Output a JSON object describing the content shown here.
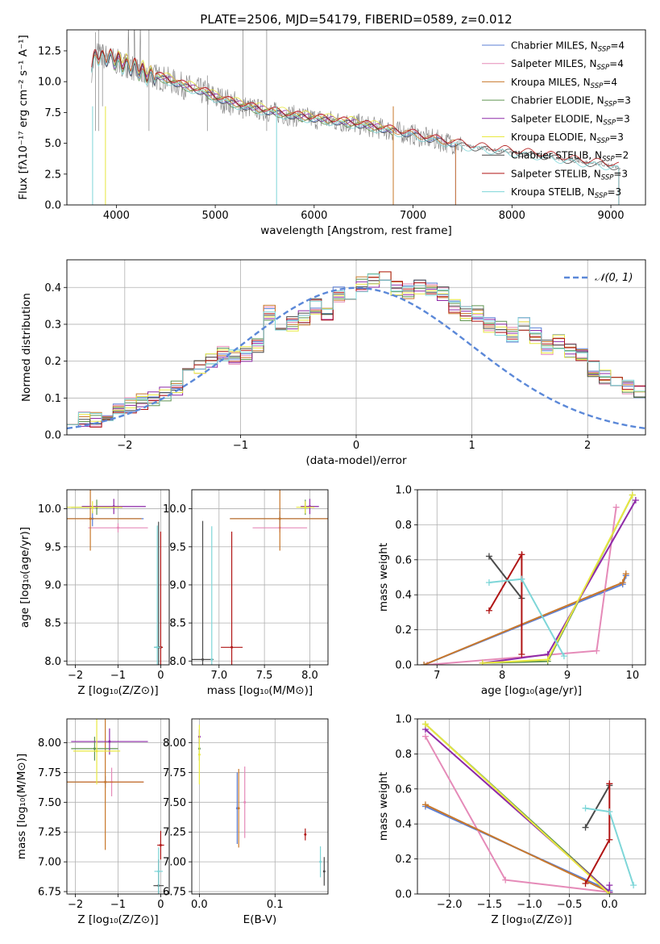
{
  "colors": {
    "Chabrier MILES": "#5b7fd6",
    "Salpeter MILES": "#e58ab8",
    "Kroupa MILES": "#c8782c",
    "Chabrier ELODIE": "#5f9450",
    "Salpeter ELODIE": "#8e2aa8",
    "Kroupa ELODIE": "#e8e840",
    "Chabrier STELIB": "#4a4a4a",
    "Salpeter STELIB": "#b01515",
    "Kroupa STELIB": "#7ed6d8",
    "data": "#808080",
    "gaussian": "#5b88d8",
    "grid": "#b0b0b0"
  },
  "chart_data": [
    {
      "id": "spectrum",
      "type": "line",
      "title": "PLATE=2506, MJD=54179, FIBERID=0589, z=0.012",
      "xlabel": "wavelength [Angstrom, rest frame]",
      "ylabel": "Flux [fλ10⁻¹⁷ erg cm⁻² s⁻¹ A⁻¹]",
      "xlim": [
        3500,
        9350
      ],
      "ylim": [
        0,
        14.2
      ],
      "xticks": [
        4000,
        5000,
        6000,
        7000,
        8000,
        9000
      ],
      "yticks": [
        0.0,
        2.5,
        5.0,
        7.5,
        10.0,
        12.5
      ],
      "grid": false,
      "legend_position": "top-right",
      "legend": [
        {
          "base": "Chabrier MILES, N",
          "sub": "SSP",
          "tail": "=4"
        },
        {
          "base": "Salpeter MILES, N",
          "sub": "SSP",
          "tail": "=4"
        },
        {
          "base": "Kroupa MILES, N",
          "sub": "SSP",
          "tail": "=4"
        },
        {
          "base": "Chabrier ELODIE, N",
          "sub": "SSP",
          "tail": "=3"
        },
        {
          "base": "Salpeter ELODIE, N",
          "sub": "SSP",
          "tail": "=3"
        },
        {
          "base": "Kroupa ELODIE, N",
          "sub": "SSP",
          "tail": "=3"
        },
        {
          "base": "Chabrier STELIB, N",
          "sub": "SSP",
          "tail": "=2"
        },
        {
          "base": "Salpeter STELIB, N",
          "sub": "SSP",
          "tail": "=3"
        },
        {
          "base": "Kroupa STELIB, N",
          "sub": "SSP",
          "tail": "=3"
        }
      ],
      "data_continuum": {
        "x": [
          3750,
          3800,
          3900,
          4000,
          4100,
          4200,
          4300,
          4500,
          4700,
          4900,
          5000,
          5200,
          5400,
          5600,
          5800,
          6000,
          6200,
          6400,
          6600,
          6800,
          7000,
          7200,
          7400,
          7600,
          7800,
          8000,
          8200,
          8400,
          8600,
          8800,
          9000,
          9100
        ],
        "y": [
          11.0,
          12.2,
          12.0,
          11.6,
          11.4,
          11.0,
          10.6,
          10.2,
          9.6,
          9.1,
          8.7,
          8.2,
          7.8,
          7.5,
          7.2,
          7.0,
          6.8,
          6.6,
          6.3,
          6.0,
          5.7,
          5.3,
          5.0,
          4.7,
          4.5,
          4.3,
          4.1,
          3.9,
          3.6,
          3.4,
          3.2,
          3.0
        ]
      },
      "model_ranges": {
        "MILES": [
          3750,
          7430
        ],
        "ELODIE": [
          3900,
          6800
        ],
        "STELIB": [
          3750,
          9080
        ]
      }
    },
    {
      "id": "residuals",
      "type": "line",
      "title": "",
      "xlabel": "(data-model)/error",
      "ylabel": "Normed distribution",
      "xlim": [
        -2.5,
        2.5
      ],
      "ylim": [
        0,
        0.475
      ],
      "xticks": [
        -2,
        -1,
        0,
        1,
        2
      ],
      "yticks": [
        0.0,
        0.1,
        0.2,
        0.3,
        0.4
      ],
      "grid": true,
      "legend_position": "top-right",
      "legend": [
        {
          "label": "𝒩(0, 1)"
        }
      ],
      "bin_width": 0.1,
      "histogram_mean": [
        0.05,
        0.04,
        0.04,
        0.06,
        0.07,
        0.08,
        0.09,
        0.1,
        0.11,
        0.13,
        0.17,
        0.18,
        0.2,
        0.22,
        0.21,
        0.22,
        0.24,
        0.33,
        0.28,
        0.3,
        0.32,
        0.35,
        0.33,
        0.38,
        0.37,
        0.41,
        0.42,
        0.44,
        0.4,
        0.39,
        0.4,
        0.39,
        0.38,
        0.35,
        0.33,
        0.33,
        0.3,
        0.29,
        0.27,
        0.3,
        0.27,
        0.24,
        0.25,
        0.23,
        0.22,
        0.18,
        0.16,
        0.14,
        0.13,
        0.12,
        0.12,
        0.11,
        0.1,
        0.09,
        0.07,
        0.08,
        0.06,
        0.06,
        0.05,
        0.04
      ],
      "gaussian": {
        "mean": 0,
        "sigma": 1
      }
    },
    {
      "id": "age_vs_Z",
      "type": "scatter",
      "xlabel": "Z [log₁₀(Z/Z⊙)]",
      "ylabel": "age  [log₁₀(age/yr)]",
      "xlim": [
        -2.2,
        0.2
      ],
      "ylim": [
        7.95,
        10.25
      ],
      "xticks": [
        -2,
        -1,
        0
      ],
      "yticks": [
        8.0,
        8.5,
        9.0,
        9.5,
        10.0
      ],
      "grid": true,
      "points": [
        {
          "model": "Chabrier MILES",
          "x": -1.6,
          "y": 9.87,
          "xerr": 1.2,
          "yerr": 0.1
        },
        {
          "model": "Salpeter MILES",
          "x": -1.0,
          "y": 9.75,
          "xerr": 0.7,
          "yerr": 0.06
        },
        {
          "model": "Kroupa MILES",
          "x": -1.65,
          "y": 9.87,
          "xerr": 1.2,
          "yerr": 0.42
        },
        {
          "model": "Chabrier ELODIE",
          "x": -1.5,
          "y": 10.02,
          "xerr": 0.6,
          "yerr": 0.1
        },
        {
          "model": "Salpeter ELODIE",
          "x": -1.1,
          "y": 10.03,
          "xerr": 0.75,
          "yerr": 0.1
        },
        {
          "model": "Kroupa ELODIE",
          "x": -1.6,
          "y": 10.02,
          "xerr": 0.7,
          "yerr": 0.08
        },
        {
          "model": "Chabrier STELIB",
          "x": -0.05,
          "y": 8.18,
          "xerr": 0.1,
          "yerr": 1.65
        },
        {
          "model": "Salpeter STELIB",
          "x": 0.0,
          "y": 8.18,
          "xerr": 0.05,
          "yerr": 1.52
        },
        {
          "model": "Kroupa STELIB",
          "x": -0.08,
          "y": 8.18,
          "xerr": 0.08,
          "yerr": 1.6
        }
      ]
    },
    {
      "id": "age_vs_mass",
      "type": "scatter",
      "xlabel": "mass [log₁₀(M/M⊙)]",
      "ylabel": "",
      "xlim": [
        6.7,
        8.2
      ],
      "ylim": [
        7.95,
        10.25
      ],
      "xticks": [
        7.0,
        7.5,
        8.0
      ],
      "yticks": [
        8.0,
        8.5,
        9.0,
        9.5,
        10.0
      ],
      "grid": true,
      "points": [
        {
          "model": "Chabrier MILES",
          "x": 7.67,
          "y": 9.87,
          "xerr": 0.55,
          "yerr": 0.1
        },
        {
          "model": "Salpeter MILES",
          "x": 7.67,
          "y": 9.75,
          "xerr": 0.3,
          "yerr": 0.06
        },
        {
          "model": "Kroupa MILES",
          "x": 7.67,
          "y": 9.87,
          "xerr": 0.55,
          "yerr": 0.42
        },
        {
          "model": "Chabrier ELODIE",
          "x": 7.95,
          "y": 10.02,
          "xerr": 0.05,
          "yerr": 0.1
        },
        {
          "model": "Salpeter ELODIE",
          "x": 8.0,
          "y": 10.03,
          "xerr": 0.1,
          "yerr": 0.1
        },
        {
          "model": "Kroupa ELODIE",
          "x": 7.95,
          "y": 10.02,
          "xerr": 0.1,
          "yerr": 0.08
        },
        {
          "model": "Chabrier STELIB",
          "x": 6.82,
          "y": 8.02,
          "xerr": 0.12,
          "yerr": 1.82
        },
        {
          "model": "Salpeter STELIB",
          "x": 7.14,
          "y": 8.18,
          "xerr": 0.12,
          "yerr": 1.52
        },
        {
          "model": "Kroupa STELIB",
          "x": 6.92,
          "y": 8.02,
          "xerr": 0.0,
          "yerr": 1.75
        }
      ]
    },
    {
      "id": "massweight_vs_age",
      "type": "line",
      "xlabel": "age  [log₁₀(age/yr)]",
      "ylabel": "mass weight",
      "xlim": [
        6.7,
        10.2
      ],
      "ylim": [
        0,
        1
      ],
      "xticks": [
        7,
        8,
        9,
        10
      ],
      "yticks": [
        0.0,
        0.2,
        0.4,
        0.6,
        0.8,
        1.0
      ],
      "grid": true,
      "series": [
        {
          "model": "Chabrier MILES",
          "x": [
            6.8,
            9.85,
            9.9
          ],
          "y": [
            0.0,
            0.46,
            0.51
          ]
        },
        {
          "model": "Salpeter MILES",
          "x": [
            6.85,
            9.45,
            9.75
          ],
          "y": [
            0.0,
            0.08,
            0.9
          ]
        },
        {
          "model": "Kroupa MILES",
          "x": [
            6.8,
            9.85,
            9.9
          ],
          "y": [
            0.0,
            0.47,
            0.52
          ]
        },
        {
          "model": "Chabrier ELODIE",
          "x": [
            7.7,
            8.7,
            10.0
          ],
          "y": [
            0.01,
            0.02,
            0.97
          ]
        },
        {
          "model": "Salpeter ELODIE",
          "x": [
            7.7,
            8.7,
            10.05
          ],
          "y": [
            0.01,
            0.06,
            0.94
          ]
        },
        {
          "model": "Kroupa ELODIE",
          "x": [
            7.7,
            8.7,
            10.0
          ],
          "y": [
            0.01,
            0.03,
            0.97
          ]
        },
        {
          "model": "Chabrier STELIB",
          "x": [
            7.8,
            8.3
          ],
          "y": [
            0.62,
            0.38
          ]
        },
        {
          "model": "Salpeter STELIB",
          "x": [
            7.8,
            8.3,
            8.3
          ],
          "y": [
            0.31,
            0.63,
            0.06
          ]
        },
        {
          "model": "Kroupa STELIB",
          "x": [
            7.8,
            8.3,
            8.95
          ],
          "y": [
            0.47,
            0.49,
            0.05
          ]
        }
      ]
    },
    {
      "id": "mass_vs_Z",
      "type": "scatter",
      "xlabel": "Z [log₁₀(Z/Z⊙)]",
      "ylabel": "mass [log₁₀(M/M⊙)]",
      "xlim": [
        -2.2,
        0.2
      ],
      "ylim": [
        6.73,
        8.2
      ],
      "xticks": [
        -2,
        -1,
        0
      ],
      "yticks": [
        6.75,
        7.0,
        7.25,
        7.5,
        7.75,
        8.0
      ],
      "grid": true,
      "points": [
        {
          "model": "Chabrier MILES",
          "x": -1.3,
          "y": 7.67,
          "xerr": 0.9,
          "yerr": 0.05
        },
        {
          "model": "Salpeter MILES",
          "x": -1.15,
          "y": 7.67,
          "xerr": 0.75,
          "yerr": 0.12
        },
        {
          "model": "Kroupa MILES",
          "x": -1.3,
          "y": 7.67,
          "xerr": 0.9,
          "yerr": 0.57
        },
        {
          "model": "Chabrier ELODIE",
          "x": -1.55,
          "y": 7.95,
          "xerr": 0.55,
          "yerr": 0.1
        },
        {
          "model": "Salpeter ELODIE",
          "x": -1.2,
          "y": 8.01,
          "xerr": 0.9,
          "yerr": 0.11
        },
        {
          "model": "Kroupa ELODIE",
          "x": -1.5,
          "y": 7.93,
          "xerr": 0.55,
          "yerr": 0.28
        },
        {
          "model": "Chabrier STELIB",
          "x": -0.05,
          "y": 6.8,
          "xerr": 0.12,
          "yerr": 0.22
        },
        {
          "model": "Salpeter STELIB",
          "x": 0.0,
          "y": 7.14,
          "xerr": 0.08,
          "yerr": 0.12
        },
        {
          "model": "Kroupa STELIB",
          "x": -0.05,
          "y": 6.92,
          "xerr": 0.1,
          "yerr": 0.2
        }
      ]
    },
    {
      "id": "mass_vs_ebv",
      "type": "scatter",
      "xlabel": "E(B-V)",
      "ylabel": "",
      "xlim": [
        -0.01,
        0.17
      ],
      "ylim": [
        6.73,
        8.2
      ],
      "xticks": [
        0.0,
        0.1
      ],
      "yticks": [
        6.75,
        7.0,
        7.25,
        7.5,
        7.75,
        8.0
      ],
      "grid": true,
      "points": [
        {
          "model": "Chabrier MILES",
          "x": 0.05,
          "y": 7.45,
          "yerr": 0.3
        },
        {
          "model": "Salpeter MILES",
          "x": 0.06,
          "y": 7.5,
          "yerr": 0.3
        },
        {
          "model": "Kroupa MILES",
          "x": 0.052,
          "y": 7.45,
          "yerr": 0.33
        },
        {
          "model": "Chabrier ELODIE",
          "x": 0.0,
          "y": 7.95,
          "yerr": 0.1
        },
        {
          "model": "Salpeter ELODIE",
          "x": 0.0,
          "y": 8.05,
          "yerr": 0.06
        },
        {
          "model": "Kroupa ELODIE",
          "x": 0.0,
          "y": 7.9,
          "yerr": 0.25
        },
        {
          "model": "Chabrier STELIB",
          "x": 0.165,
          "y": 6.92,
          "yerr": 0.12
        },
        {
          "model": "Salpeter STELIB",
          "x": 0.14,
          "y": 7.23,
          "yerr": 0.05
        },
        {
          "model": "Kroupa STELIB",
          "x": 0.16,
          "y": 7.0,
          "yerr": 0.13
        }
      ]
    },
    {
      "id": "massweight_vs_Z",
      "type": "line",
      "xlabel": "Z [log₁₀(Z/Z⊙)]",
      "ylabel": "mass weight",
      "xlim": [
        -2.4,
        0.45
      ],
      "ylim": [
        0,
        1
      ],
      "xticks": [
        -2.0,
        -1.5,
        -1.0,
        -0.5,
        0.0
      ],
      "yticks": [
        0.0,
        0.2,
        0.4,
        0.6,
        0.8,
        1.0
      ],
      "grid": true,
      "series": [
        {
          "model": "Chabrier MILES",
          "x": [
            -2.3,
            0.0
          ],
          "y": [
            0.5,
            0.02
          ]
        },
        {
          "model": "Salpeter MILES",
          "x": [
            -2.3,
            -1.3,
            0.0
          ],
          "y": [
            0.9,
            0.08,
            0.01
          ]
        },
        {
          "model": "Kroupa MILES",
          "x": [
            -2.3,
            0.0
          ],
          "y": [
            0.51,
            0.01
          ]
        },
        {
          "model": "Chabrier ELODIE",
          "x": [
            -2.3,
            0.0
          ],
          "y": [
            0.97,
            0.01
          ]
        },
        {
          "model": "Salpeter ELODIE",
          "x": [
            -2.3,
            0.0,
            0.0
          ],
          "y": [
            0.94,
            0.01,
            0.05
          ]
        },
        {
          "model": "Kroupa ELODIE",
          "x": [
            -2.3,
            0.0
          ],
          "y": [
            0.97,
            0.0
          ]
        },
        {
          "model": "Chabrier STELIB",
          "x": [
            -0.3,
            0.0
          ],
          "y": [
            0.38,
            0.62
          ]
        },
        {
          "model": "Salpeter STELIB",
          "x": [
            -0.3,
            0.0,
            0.0
          ],
          "y": [
            0.06,
            0.31,
            0.63
          ]
        },
        {
          "model": "Kroupa STELIB",
          "x": [
            -0.3,
            0.0,
            0.3
          ],
          "y": [
            0.49,
            0.47,
            0.05
          ]
        }
      ]
    }
  ]
}
